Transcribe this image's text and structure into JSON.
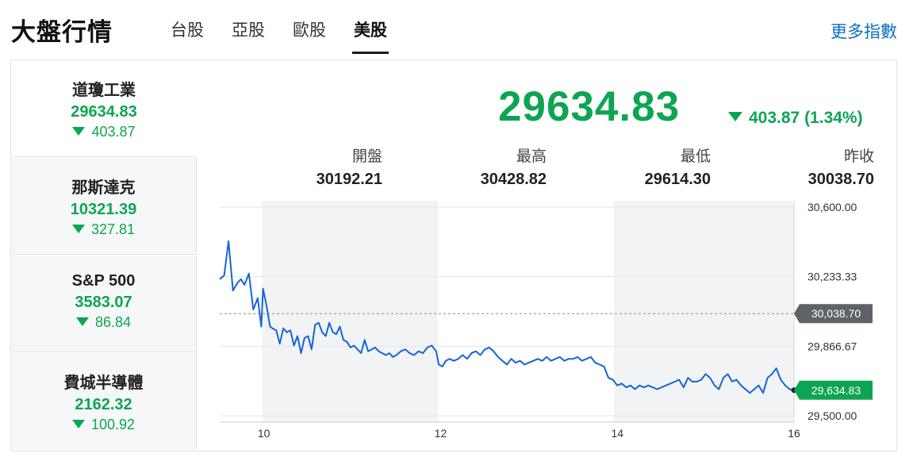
{
  "header": {
    "title": "大盤行情",
    "tabs": [
      "台股",
      "亞股",
      "歐股",
      "美股"
    ],
    "active_tab": 3,
    "more_link": "更多指數"
  },
  "sidebar": {
    "items": [
      {
        "name": "道瓊工業",
        "price": "29634.83",
        "change": "403.87"
      },
      {
        "name": "那斯達克",
        "price": "10321.39",
        "change": "327.81"
      },
      {
        "name": "S&P 500",
        "price": "3583.07",
        "change": "86.84"
      },
      {
        "name": "費城半導體",
        "price": "2162.32",
        "change": "100.92"
      }
    ]
  },
  "quote": {
    "price": "29634.83",
    "change": "403.87 (1.34%)",
    "stats": [
      {
        "label": "開盤",
        "value": "30192.21"
      },
      {
        "label": "最高",
        "value": "30428.82"
      },
      {
        "label": "最低",
        "value": "29614.30"
      },
      {
        "label": "昨收",
        "value": "30038.70"
      }
    ]
  },
  "colors": {
    "down": "#0ea552",
    "line": "#1565d8",
    "link": "#0b6ec5",
    "shade": "#f2f3f4"
  },
  "chart_data": {
    "type": "line",
    "x_ticks": [
      10,
      12,
      14,
      16
    ],
    "y_ticks": [
      "30,600.00",
      "30,233.33",
      "29,866.67",
      "29,500.00"
    ],
    "y_tick_values": [
      30600,
      30233.33,
      29866.67,
      29500
    ],
    "ylim": [
      29466.67,
      30633.33
    ],
    "xlim": [
      9.5,
      16
    ],
    "shaded_ranges": [
      [
        9.98,
        11.97
      ],
      [
        13.96,
        15.99
      ]
    ],
    "previous_close": {
      "value": 30038.7,
      "label": "30,038.70"
    },
    "last": {
      "value": 29634.83,
      "label": "29,634.83"
    },
    "series": [
      {
        "x": [
          9.5,
          9.55,
          9.6,
          9.65,
          9.7,
          9.74,
          9.78,
          9.83,
          9.88,
          9.93,
          9.97,
          9.99,
          10.03,
          10.07,
          10.1,
          10.14,
          10.18,
          10.22,
          10.26,
          10.3,
          10.34,
          10.38,
          10.42,
          10.46,
          10.5,
          10.54,
          10.58,
          10.62,
          10.66,
          10.7,
          10.74,
          10.78,
          10.82,
          10.86,
          10.9,
          10.94,
          10.98,
          11.02,
          11.06,
          11.1,
          11.14,
          11.18,
          11.22,
          11.26,
          11.3,
          11.34,
          11.38,
          11.42,
          11.46,
          11.5,
          11.55,
          11.6,
          11.65,
          11.7,
          11.75,
          11.8,
          11.85,
          11.9,
          11.95,
          11.98,
          12.02,
          12.06,
          12.1,
          12.15,
          12.2,
          12.25,
          12.3,
          12.35,
          12.4,
          12.45,
          12.5,
          12.55,
          12.6,
          12.65,
          12.7,
          12.75,
          12.8,
          12.85,
          12.9,
          12.95,
          13.0,
          13.05,
          13.1,
          13.15,
          13.2,
          13.25,
          13.3,
          13.35,
          13.4,
          13.45,
          13.5,
          13.55,
          13.6,
          13.65,
          13.7,
          13.75,
          13.8,
          13.85,
          13.9,
          13.95,
          14.0,
          14.05,
          14.1,
          14.15,
          14.2,
          14.25,
          14.3,
          14.35,
          14.4,
          14.45,
          14.5,
          14.55,
          14.6,
          14.65,
          14.7,
          14.75,
          14.8,
          14.85,
          14.9,
          14.95,
          15.0,
          15.05,
          15.1,
          15.15,
          15.2,
          15.25,
          15.3,
          15.35,
          15.4,
          15.45,
          15.5,
          15.55,
          15.6,
          15.65,
          15.7,
          15.75,
          15.8,
          15.85,
          15.9,
          15.95,
          16.0
        ],
        "values": [
          30220,
          30240,
          30420,
          30160,
          30200,
          30220,
          30190,
          30250,
          30060,
          30120,
          29970,
          30170,
          30080,
          29970,
          29960,
          29950,
          29880,
          29960,
          29940,
          29950,
          29870,
          29920,
          29830,
          29910,
          29920,
          29850,
          29980,
          29990,
          29940,
          29920,
          29990,
          29940,
          29930,
          29970,
          29900,
          29890,
          29860,
          29870,
          29850,
          29830,
          29900,
          29840,
          29850,
          29860,
          29840,
          29830,
          29820,
          29830,
          29810,
          29820,
          29840,
          29850,
          29830,
          29820,
          29840,
          29830,
          29860,
          29870,
          29840,
          29770,
          29760,
          29790,
          29800,
          29790,
          29800,
          29820,
          29800,
          29830,
          29840,
          29820,
          29850,
          29860,
          29840,
          29810,
          29790,
          29770,
          29800,
          29780,
          29790,
          29770,
          29780,
          29790,
          29800,
          29790,
          29810,
          29790,
          29800,
          29810,
          29790,
          29800,
          29800,
          29810,
          29790,
          29800,
          29810,
          29780,
          29770,
          29760,
          29700,
          29690,
          29660,
          29670,
          29650,
          29660,
          29640,
          29660,
          29650,
          29660,
          29650,
          29640,
          29650,
          29660,
          29670,
          29680,
          29690,
          29650,
          29700,
          29680,
          29680,
          29690,
          29720,
          29700,
          29660,
          29640,
          29700,
          29720,
          29680,
          29690,
          29660,
          29640,
          29620,
          29640,
          29660,
          29620,
          29700,
          29720,
          29750,
          29690,
          29660,
          29640,
          29634.83
        ]
      }
    ]
  }
}
